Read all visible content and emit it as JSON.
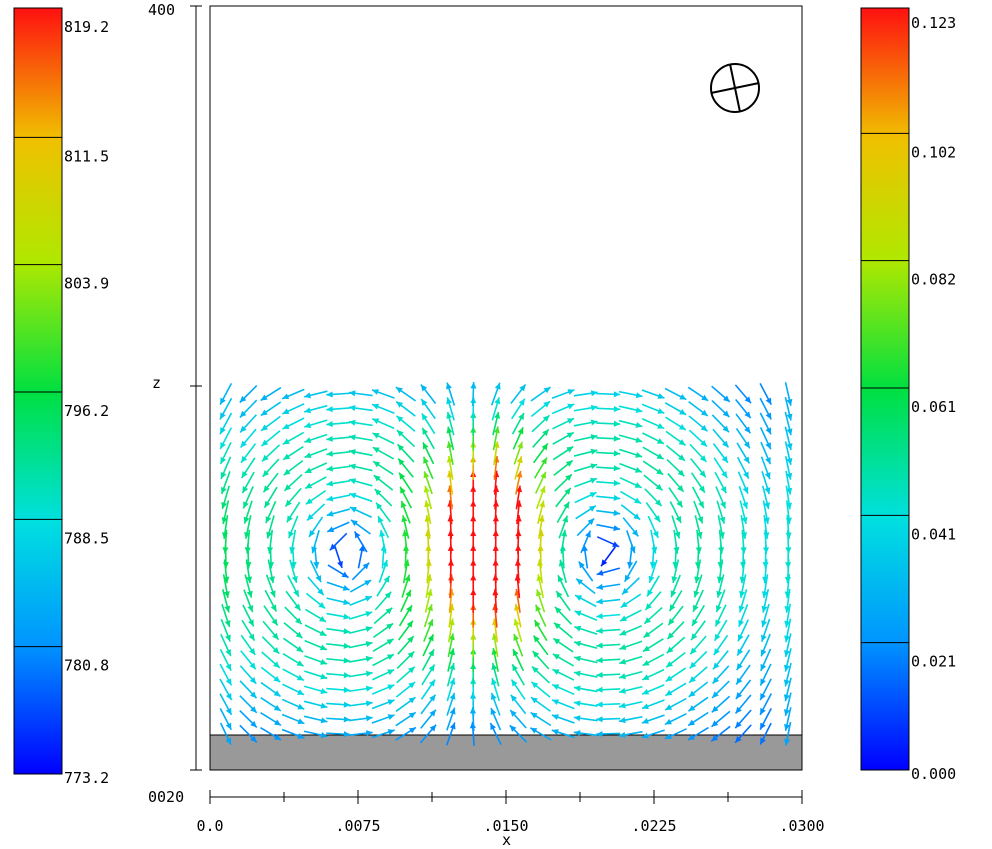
{
  "chart_data": {
    "type": "vector-field",
    "xlabel": "x",
    "ylabel": "z",
    "x_ticks": [
      ".0000",
      ".0075",
      ".0150",
      ".0225",
      ".0300"
    ],
    "x_tick_labels": [
      "0.0",
      ".0075",
      ".0150",
      ".0225",
      ".0300"
    ],
    "xlim": [
      0.0,
      0.03
    ],
    "ylim": [
      0.002,
      0.04
    ],
    "y_tick_labels_partial": [
      "400",
      "0020"
    ],
    "left_colorbar": {
      "labels": [
        "819.2",
        "811.5",
        "803.9",
        "796.2",
        "788.5",
        "780.8",
        "773.2"
      ],
      "min": 773.2,
      "max": 819.2
    },
    "right_colorbar": {
      "labels": [
        "0.123",
        "0.102",
        "0.082",
        "0.061",
        "0.041",
        "0.021",
        "0.000"
      ],
      "min": 0.0,
      "max": 0.123
    },
    "liquid_surface_z": 0.02,
    "left_vortex_center": [
      0.0075,
      0.0128
    ],
    "right_vortex_center": [
      0.0195,
      0.0128
    ],
    "max_speed_location": [
      0.0143,
      0.0138
    ],
    "base_plate": {
      "z_range": [
        0.002,
        0.0036
      ],
      "color": "#999999"
    },
    "grid": false
  }
}
